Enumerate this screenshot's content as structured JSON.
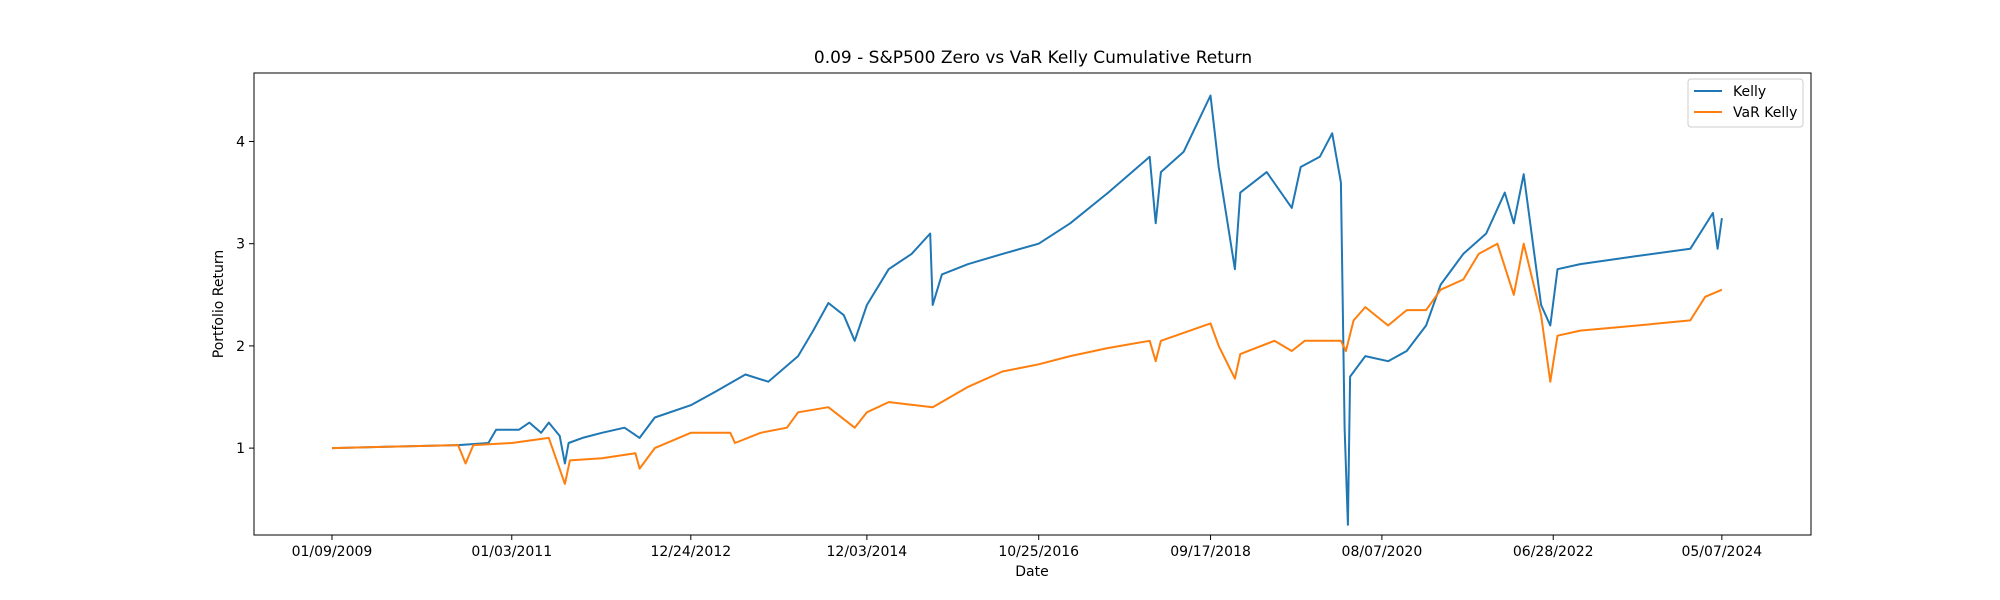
{
  "chart_data": {
    "type": "line",
    "title": "0.09 - S&P500 Zero vs VaR Kelly Cumulative Return",
    "xlabel": "Date",
    "ylabel": "Portfolio Return",
    "x_ticks": [
      "01/09/2009",
      "01/03/2011",
      "12/24/2012",
      "12/03/2014",
      "10/25/2016",
      "09/17/2018",
      "08/07/2020",
      "06/28/2022",
      "05/07/2024"
    ],
    "y_ticks": [
      1,
      2,
      3,
      4
    ],
    "xlim": [
      "2008-03-01",
      "2025-05-01"
    ],
    "ylim": [
      0.15,
      4.67
    ],
    "grid": false,
    "legend_position": "top-right",
    "series": [
      {
        "name": "Kelly",
        "color": "#1f77b4",
        "points": [
          [
            "2009-01-09",
            1.0
          ],
          [
            "2010-06-01",
            1.03
          ],
          [
            "2010-10-01",
            1.05
          ],
          [
            "2010-11-01",
            1.18
          ],
          [
            "2011-02-01",
            1.18
          ],
          [
            "2011-03-15",
            1.25
          ],
          [
            "2011-05-01",
            1.15
          ],
          [
            "2011-06-01",
            1.25
          ],
          [
            "2011-07-15",
            1.12
          ],
          [
            "2011-08-05",
            0.85
          ],
          [
            "2011-08-20",
            1.05
          ],
          [
            "2011-10-15",
            1.1
          ],
          [
            "2012-01-01",
            1.15
          ],
          [
            "2012-04-01",
            1.2
          ],
          [
            "2012-06-01",
            1.1
          ],
          [
            "2012-08-01",
            1.3
          ],
          [
            "2012-12-24",
            1.42
          ],
          [
            "2013-04-01",
            1.55
          ],
          [
            "2013-08-01",
            1.72
          ],
          [
            "2013-11-01",
            1.65
          ],
          [
            "2014-03-01",
            1.9
          ],
          [
            "2014-05-01",
            2.15
          ],
          [
            "2014-07-01",
            2.42
          ],
          [
            "2014-09-01",
            2.3
          ],
          [
            "2014-10-15",
            2.05
          ],
          [
            "2014-12-03",
            2.4
          ],
          [
            "2015-03-01",
            2.75
          ],
          [
            "2015-06-01",
            2.9
          ],
          [
            "2015-08-15",
            3.1
          ],
          [
            "2015-08-25",
            2.4
          ],
          [
            "2015-10-01",
            2.7
          ],
          [
            "2016-01-15",
            2.8
          ],
          [
            "2016-06-01",
            2.9
          ],
          [
            "2016-10-25",
            3.0
          ],
          [
            "2017-03-01",
            3.2
          ],
          [
            "2017-08-01",
            3.5
          ],
          [
            "2018-01-15",
            3.85
          ],
          [
            "2018-02-08",
            3.2
          ],
          [
            "2018-03-01",
            3.7
          ],
          [
            "2018-06-01",
            3.9
          ],
          [
            "2018-09-17",
            4.45
          ],
          [
            "2018-10-20",
            3.75
          ],
          [
            "2018-12-24",
            2.75
          ],
          [
            "2019-01-15",
            3.5
          ],
          [
            "2019-05-01",
            3.7
          ],
          [
            "2019-08-10",
            3.35
          ],
          [
            "2019-09-15",
            3.75
          ],
          [
            "2019-12-01",
            3.85
          ],
          [
            "2020-01-20",
            4.08
          ],
          [
            "2020-02-24",
            3.6
          ],
          [
            "2020-03-10",
            1.2
          ],
          [
            "2020-03-23",
            0.25
          ],
          [
            "2020-04-01",
            1.7
          ],
          [
            "2020-06-01",
            1.9
          ],
          [
            "2020-09-01",
            1.85
          ],
          [
            "2020-11-15",
            1.95
          ],
          [
            "2021-02-01",
            2.2
          ],
          [
            "2021-04-01",
            2.6
          ],
          [
            "2021-07-01",
            2.9
          ],
          [
            "2021-10-01",
            3.1
          ],
          [
            "2021-12-15",
            3.5
          ],
          [
            "2022-01-20",
            3.2
          ],
          [
            "2022-03-01",
            3.68
          ],
          [
            "2022-05-10",
            2.4
          ],
          [
            "2022-06-16",
            2.2
          ],
          [
            "2022-07-15",
            2.75
          ],
          [
            "2022-10-15",
            2.8
          ],
          [
            "2023-06-01",
            2.88
          ],
          [
            "2024-01-01",
            2.95
          ],
          [
            "2024-04-01",
            3.3
          ],
          [
            "2024-04-20",
            2.95
          ],
          [
            "2024-05-07",
            3.25
          ]
        ]
      },
      {
        "name": "VaR Kelly",
        "color": "#ff7f0e",
        "points": [
          [
            "2009-01-09",
            1.0
          ],
          [
            "2010-06-01",
            1.03
          ],
          [
            "2010-07-01",
            0.85
          ],
          [
            "2010-08-01",
            1.03
          ],
          [
            "2011-01-03",
            1.05
          ],
          [
            "2011-06-01",
            1.1
          ],
          [
            "2011-08-05",
            0.65
          ],
          [
            "2011-08-25",
            0.88
          ],
          [
            "2012-01-01",
            0.9
          ],
          [
            "2012-05-15",
            0.95
          ],
          [
            "2012-06-01",
            0.8
          ],
          [
            "2012-08-01",
            1.0
          ],
          [
            "2012-12-24",
            1.15
          ],
          [
            "2013-06-01",
            1.15
          ],
          [
            "2013-06-20",
            1.05
          ],
          [
            "2013-10-01",
            1.15
          ],
          [
            "2014-01-15",
            1.2
          ],
          [
            "2014-03-01",
            1.35
          ],
          [
            "2014-07-01",
            1.4
          ],
          [
            "2014-10-15",
            1.2
          ],
          [
            "2014-12-03",
            1.35
          ],
          [
            "2015-03-01",
            1.45
          ],
          [
            "2015-08-25",
            1.4
          ],
          [
            "2016-01-15",
            1.6
          ],
          [
            "2016-06-01",
            1.75
          ],
          [
            "2016-10-25",
            1.82
          ],
          [
            "2017-03-01",
            1.9
          ],
          [
            "2017-08-01",
            1.98
          ],
          [
            "2018-01-15",
            2.05
          ],
          [
            "2018-02-08",
            1.85
          ],
          [
            "2018-03-01",
            2.05
          ],
          [
            "2018-09-17",
            2.22
          ],
          [
            "2018-10-20",
            2.0
          ],
          [
            "2018-12-24",
            1.68
          ],
          [
            "2019-01-15",
            1.92
          ],
          [
            "2019-06-01",
            2.05
          ],
          [
            "2019-08-10",
            1.95
          ],
          [
            "2019-10-01",
            2.05
          ],
          [
            "2020-02-24",
            2.05
          ],
          [
            "2020-03-15",
            1.95
          ],
          [
            "2020-04-15",
            2.25
          ],
          [
            "2020-06-01",
            2.38
          ],
          [
            "2020-09-01",
            2.2
          ],
          [
            "2020-11-15",
            2.35
          ],
          [
            "2021-02-01",
            2.35
          ],
          [
            "2021-04-01",
            2.55
          ],
          [
            "2021-07-01",
            2.65
          ],
          [
            "2021-09-01",
            2.9
          ],
          [
            "2021-11-15",
            3.0
          ],
          [
            "2022-01-20",
            2.5
          ],
          [
            "2022-03-01",
            3.0
          ],
          [
            "2022-05-10",
            2.3
          ],
          [
            "2022-06-16",
            1.65
          ],
          [
            "2022-07-15",
            2.1
          ],
          [
            "2022-10-15",
            2.15
          ],
          [
            "2023-06-01",
            2.2
          ],
          [
            "2024-01-01",
            2.25
          ],
          [
            "2024-03-01",
            2.48
          ],
          [
            "2024-05-07",
            2.55
          ]
        ]
      }
    ]
  }
}
